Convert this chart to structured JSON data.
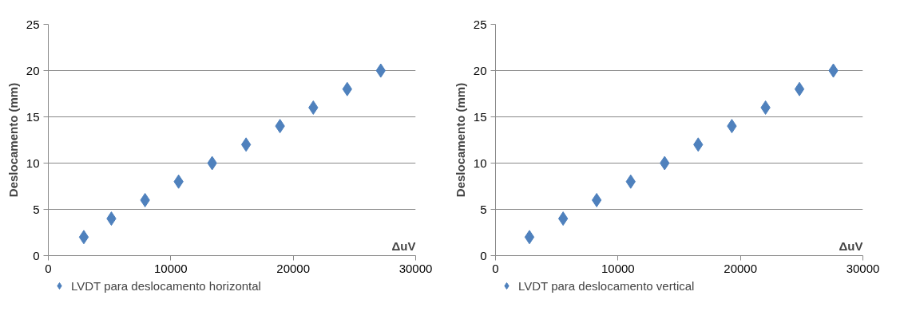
{
  "chart_data": [
    {
      "type": "scatter",
      "xlabel": "ΔuV",
      "ylabel": "Deslocamento (mm)",
      "x": [
        2900,
        5150,
        7900,
        10640,
        13380,
        16150,
        18920,
        21640,
        24410,
        27150
      ],
      "series": [
        {
          "name": "LVDT para deslocamento horizontal",
          "color": "#4f81bd",
          "values": [
            2,
            4,
            6,
            8,
            10,
            12,
            14,
            16,
            18,
            20
          ]
        }
      ],
      "xlim": [
        0,
        30000
      ],
      "xticks": [
        0,
        10000,
        20000,
        30000
      ],
      "ylim": [
        0,
        25
      ],
      "yticks": [
        0,
        5,
        10,
        15,
        20,
        25
      ],
      "grid": "y",
      "legend": "bottom",
      "marker": "diamond"
    },
    {
      "type": "scatter",
      "xlabel": "ΔuV",
      "ylabel": "Deslocamento (mm)",
      "x": [
        2770,
        5520,
        8260,
        11040,
        13810,
        16550,
        19300,
        22050,
        24820,
        27590
      ],
      "series": [
        {
          "name": "LVDT para deslocamento vertical",
          "color": "#4f81bd",
          "values": [
            2,
            4,
            6,
            8,
            10,
            12,
            14,
            16,
            18,
            20
          ]
        }
      ],
      "xlim": [
        0,
        30000
      ],
      "xticks": [
        0,
        10000,
        20000,
        30000
      ],
      "ylim": [
        0,
        25
      ],
      "yticks": [
        0,
        5,
        10,
        15,
        20,
        25
      ],
      "grid": "y",
      "legend": "bottom",
      "marker": "diamond"
    }
  ]
}
